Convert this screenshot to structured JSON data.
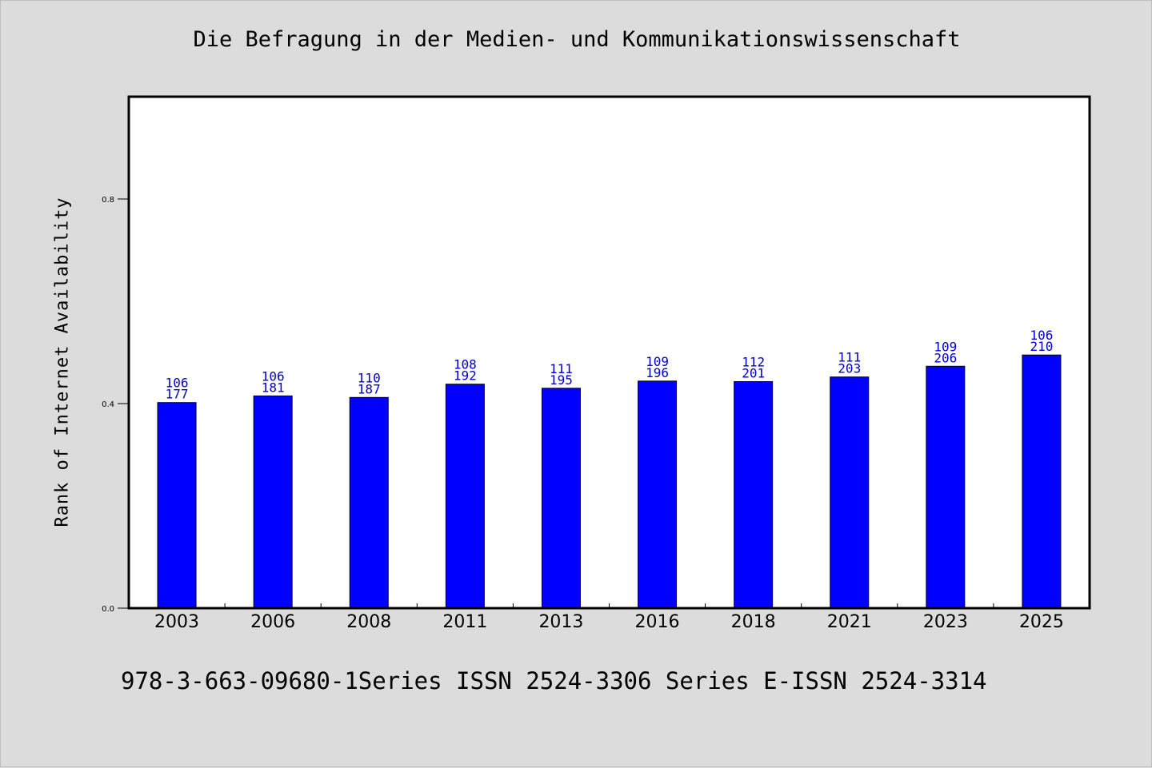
{
  "chart_data": {
    "type": "bar",
    "title": "Die Befragung in der Medien- und Kommunikationswissenschaft",
    "footer": "978-3-663-09680-1Series ISSN 2524-3306 Series E-ISSN 2524-3314",
    "ylabel": "Rank of Internet Availability",
    "xlabel": "",
    "categories": [
      "2003",
      "2006",
      "2008",
      "2011",
      "2013",
      "2016",
      "2018",
      "2021",
      "2023",
      "2025"
    ],
    "values": [
      0.402,
      0.415,
      0.412,
      0.438,
      0.43,
      0.444,
      0.443,
      0.452,
      0.473,
      0.495
    ],
    "labels_top": [
      "106",
      "106",
      "110",
      "108",
      "111",
      "109",
      "112",
      "111",
      "109",
      "106"
    ],
    "labels_bottom": [
      "177",
      "181",
      "187",
      "192",
      "195",
      "196",
      "201",
      "203",
      "206",
      "210"
    ],
    "yticks": [
      "0.0",
      "0.4",
      "0.8"
    ],
    "ylim": [
      0,
      1.0
    ],
    "grid": false,
    "bar_color": "#0000ff",
    "label_color": "#0000cc",
    "plot_background": "#ffffff",
    "figure_background": "#dcdcdc"
  }
}
